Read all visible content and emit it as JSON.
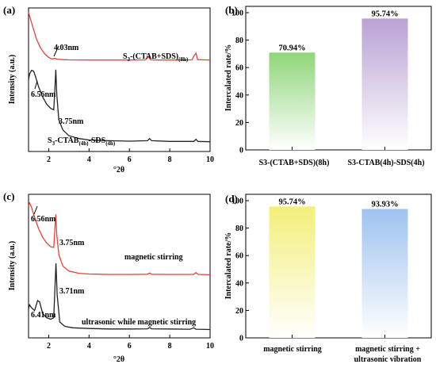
{
  "chart_data": [
    {
      "panel": "(a)",
      "type": "line",
      "xlabel": "°2θ",
      "ylabel": "Intensity (a.u.)",
      "xlim": [
        1,
        10
      ],
      "xticks": [
        "2",
        "4",
        "6",
        "8",
        "10"
      ],
      "series": [
        {
          "name": "S3-(CTAB+SDS)(8h)",
          "label_main": "S",
          "label_sub1": "3",
          "label_mid": "-(CTAB+SDS)",
          "label_sub2": "(8h)",
          "label_end": "",
          "color": "#e8413a",
          "points": [
            [
              1.0,
              0.97
            ],
            [
              1.1,
              0.92
            ],
            [
              1.25,
              0.85
            ],
            [
              1.4,
              0.78
            ],
            [
              1.6,
              0.72
            ],
            [
              1.8,
              0.68
            ],
            [
              2.0,
              0.655
            ],
            [
              2.15,
              0.645
            ],
            [
              2.3,
              0.648
            ],
            [
              2.45,
              0.643
            ],
            [
              2.7,
              0.64
            ],
            [
              3.0,
              0.638
            ],
            [
              4.0,
              0.637
            ],
            [
              5.0,
              0.637
            ],
            [
              6.0,
              0.637
            ],
            [
              6.8,
              0.638
            ],
            [
              6.95,
              0.66
            ],
            [
              7.05,
              0.638
            ],
            [
              7.5,
              0.637
            ],
            [
              8.5,
              0.637
            ],
            [
              9.1,
              0.638
            ],
            [
              9.2,
              0.665
            ],
            [
              9.3,
              0.685
            ],
            [
              9.38,
              0.64
            ],
            [
              10.0,
              0.637
            ]
          ]
        },
        {
          "name": "S3-CTAB(4h)-SDS(4h)",
          "label_main": "S",
          "label_sub1": "3",
          "label_mid": "-CTAB",
          "label_sub2": "(4h)",
          "label_end": "-SDS",
          "label_sub3": "(4h)",
          "color": "#222222",
          "points": [
            [
              1.0,
              0.5
            ],
            [
              1.05,
              0.54
            ],
            [
              1.15,
              0.565
            ],
            [
              1.25,
              0.56
            ],
            [
              1.35,
              0.52
            ],
            [
              1.5,
              0.45
            ],
            [
              1.7,
              0.38
            ],
            [
              1.9,
              0.33
            ],
            [
              2.1,
              0.3
            ],
            [
              2.25,
              0.29
            ],
            [
              2.3,
              0.42
            ],
            [
              2.35,
              0.57
            ],
            [
              2.4,
              0.4
            ],
            [
              2.5,
              0.22
            ],
            [
              2.7,
              0.15
            ],
            [
              3.0,
              0.11
            ],
            [
              3.5,
              0.09
            ],
            [
              4.0,
              0.08
            ],
            [
              5.0,
              0.075
            ],
            [
              6.0,
              0.072
            ],
            [
              6.9,
              0.075
            ],
            [
              7.0,
              0.09
            ],
            [
              7.1,
              0.075
            ],
            [
              8.0,
              0.07
            ],
            [
              9.2,
              0.07
            ],
            [
              9.3,
              0.085
            ],
            [
              9.4,
              0.07
            ],
            [
              10.0,
              0.068
            ]
          ]
        }
      ],
      "annotations": [
        {
          "text": "4.03nm",
          "x": 2.3,
          "y": 0.648
        },
        {
          "text": "6.56nm",
          "x": 1.25,
          "y": 0.56
        },
        {
          "text": "3.75nm",
          "x": 2.35,
          "y": 0.57
        }
      ]
    },
    {
      "panel": "(b)",
      "type": "bar",
      "ylabel": "Intercalated rate/%",
      "ylim": [
        0,
        100
      ],
      "yticks": [
        "0",
        "20",
        "40",
        "60",
        "80",
        "100"
      ],
      "categories": [
        "S3-(CTAB+SDS)(8h)",
        "S3-CTAB(4h)-SDS(4h)"
      ],
      "values": [
        70.94,
        95.74
      ],
      "data_labels": [
        "70.94%",
        "95.74%"
      ],
      "colors": [
        "#8fd67a",
        "#b9a2d4"
      ]
    },
    {
      "panel": "(c)",
      "type": "line",
      "xlabel": "°2θ",
      "ylabel": "Intensity (a.u.)",
      "xlim": [
        1,
        10
      ],
      "xticks": [
        "2",
        "4",
        "6",
        "8",
        "10"
      ],
      "series": [
        {
          "name": "magnetic stirring",
          "color": "#e8413a",
          "points": [
            [
              1.0,
              0.92
            ],
            [
              1.05,
              0.94
            ],
            [
              1.15,
              0.91
            ],
            [
              1.3,
              0.84
            ],
            [
              1.5,
              0.76
            ],
            [
              1.7,
              0.7
            ],
            [
              1.9,
              0.66
            ],
            [
              2.1,
              0.635
            ],
            [
              2.25,
              0.63
            ],
            [
              2.3,
              0.75
            ],
            [
              2.35,
              0.86
            ],
            [
              2.4,
              0.72
            ],
            [
              2.5,
              0.58
            ],
            [
              2.7,
              0.5
            ],
            [
              3.0,
              0.465
            ],
            [
              3.5,
              0.45
            ],
            [
              4.0,
              0.445
            ],
            [
              5.0,
              0.442
            ],
            [
              6.0,
              0.442
            ],
            [
              6.9,
              0.443
            ],
            [
              7.0,
              0.452
            ],
            [
              7.1,
              0.443
            ],
            [
              8.0,
              0.442
            ],
            [
              9.2,
              0.442
            ],
            [
              9.3,
              0.455
            ],
            [
              9.4,
              0.442
            ],
            [
              10.0,
              0.44
            ]
          ]
        },
        {
          "name": "ultrasonic while magnetic stirring",
          "color": "#222222",
          "points": [
            [
              1.0,
              0.2
            ],
            [
              1.05,
              0.23
            ],
            [
              1.15,
              0.21
            ],
            [
              1.3,
              0.19
            ],
            [
              1.45,
              0.26
            ],
            [
              1.55,
              0.25
            ],
            [
              1.7,
              0.17
            ],
            [
              1.9,
              0.14
            ],
            [
              2.1,
              0.13
            ],
            [
              2.25,
              0.14
            ],
            [
              2.3,
              0.32
            ],
            [
              2.36,
              0.52
            ],
            [
              2.42,
              0.3
            ],
            [
              2.55,
              0.11
            ],
            [
              2.8,
              0.08
            ],
            [
              3.2,
              0.07
            ],
            [
              4.0,
              0.065
            ],
            [
              5.0,
              0.062
            ],
            [
              6.0,
              0.062
            ],
            [
              6.9,
              0.063
            ],
            [
              7.0,
              0.072
            ],
            [
              7.1,
              0.063
            ],
            [
              8.0,
              0.062
            ],
            [
              9.0,
              0.06
            ],
            [
              9.2,
              0.07
            ],
            [
              9.3,
              0.06
            ],
            [
              10.0,
              0.058
            ]
          ]
        }
      ],
      "annotations": [
        {
          "text": "6.56nm",
          "x": 1.05,
          "y": 0.94
        },
        {
          "text": "3.75nm",
          "x": 2.35,
          "y": 0.86
        },
        {
          "text": "3.71nm",
          "x": 2.36,
          "y": 0.52
        },
        {
          "text": "6.41nm",
          "x": 1.45,
          "y": 0.26
        }
      ]
    },
    {
      "panel": "(d)",
      "type": "bar",
      "ylabel": "Intercalated rate/%",
      "ylim": [
        0,
        100
      ],
      "yticks": [
        "0",
        "20",
        "40",
        "60",
        "80",
        "100"
      ],
      "categories": [
        "magnetic stirring",
        "magnetic stirring + ultrasonic vibration"
      ],
      "category_lines": [
        [
          "magnetic stirring"
        ],
        [
          "magnetic stirring +",
          "ultrasonic vibration"
        ]
      ],
      "values": [
        95.74,
        93.93
      ],
      "data_labels": [
        "95.74%",
        "93.93%"
      ],
      "colors": [
        "#f3ef7a",
        "#9ec3f0"
      ]
    }
  ],
  "xlabel_lower_c": "°2θ",
  "xlabel_lower_a": "°2θ"
}
